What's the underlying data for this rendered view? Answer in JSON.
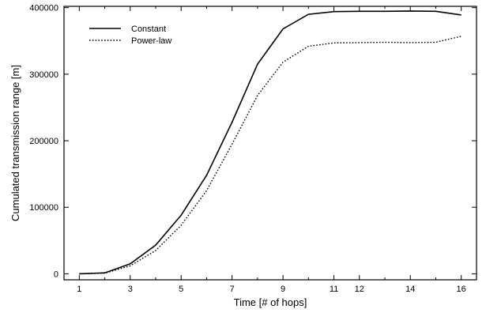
{
  "chart_data": {
    "type": "line",
    "xlabel": "Time [# of hops]",
    "ylabel": "Cumulated transmission range [m]",
    "xlim": [
      0.4,
      16.6
    ],
    "ylim": [
      -9000,
      402000
    ],
    "x_ticks": [
      1,
      3,
      5,
      7,
      9,
      11,
      12,
      14,
      16
    ],
    "x_minor_ticks": [
      2,
      4,
      6,
      8,
      10,
      13,
      15
    ],
    "y_ticks": [
      0,
      100000,
      200000,
      300000,
      400000
    ],
    "grid": false,
    "legend_position": "top-left",
    "x": [
      1,
      2,
      3,
      4,
      5,
      6,
      7,
      8,
      9,
      10,
      11,
      12,
      13,
      14,
      15,
      16
    ],
    "series": [
      {
        "name": "Constant",
        "style": "solid",
        "color": "#000000",
        "values": [
          0,
          1500,
          15000,
          43000,
          88000,
          148000,
          228000,
          315000,
          368000,
          390000,
          394000,
          394500,
          394500,
          395000,
          394500,
          389000
        ]
      },
      {
        "name": "Power-law",
        "style": "dotted",
        "color": "#000000",
        "values": [
          0,
          1000,
          12000,
          35000,
          73000,
          125000,
          195000,
          268000,
          318000,
          342000,
          347000,
          347500,
          348000,
          347500,
          348000,
          357000
        ]
      }
    ]
  }
}
